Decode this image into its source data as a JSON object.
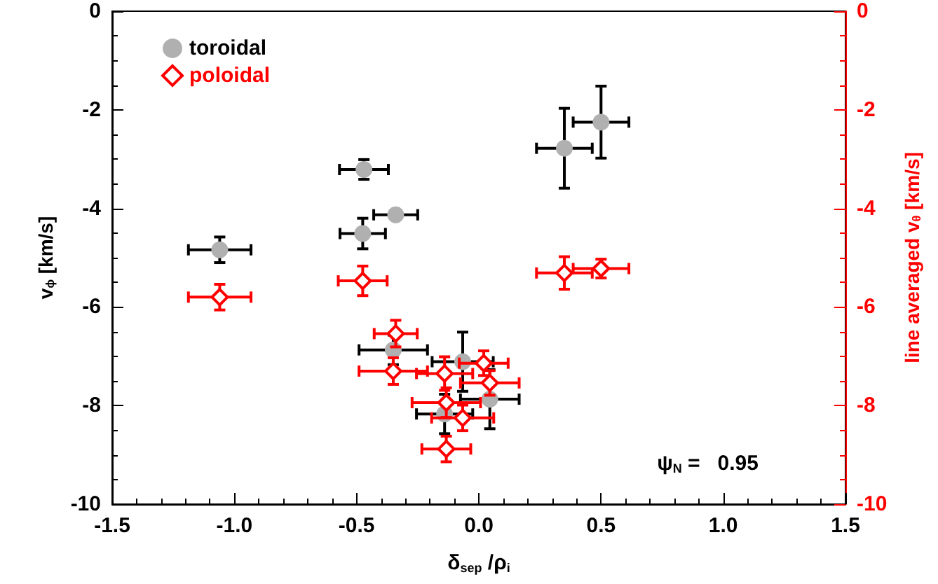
{
  "chart_data": {
    "type": "scatter",
    "xlabel": "δ$_{sep}$ /ρ$_{i}$",
    "ylabel": "v$_{ϕ}$ [km/s]",
    "y2label": "line averaged v$_{θ}$ [km/s]",
    "xlim": [
      -1.5,
      1.5
    ],
    "xticks": [
      {
        "value": -1.5,
        "label": "-1.5"
      },
      {
        "value": -1,
        "label": "-1.0"
      },
      {
        "value": -0.5,
        "label": "-0.5"
      },
      {
        "value": 0,
        "label": "0.0"
      },
      {
        "value": 0.5,
        "label": "0.5"
      },
      {
        "value": 1,
        "label": "1.0"
      },
      {
        "value": 1.5,
        "label": "1.5"
      }
    ],
    "ylim": [
      -10,
      0
    ],
    "yticks": [
      -10,
      -8,
      -6,
      -4,
      -2,
      0
    ],
    "y2lim": [
      -10,
      0
    ],
    "y2ticks": [
      -10,
      -8,
      -6,
      -4,
      -2,
      0
    ],
    "grid": false,
    "legend": "top left",
    "annotations": [
      "ψ$_{N}$ =   0.95"
    ],
    "series": [
      {
        "name": "toroidal",
        "color": "#b0b0b0",
        "marker": "circle",
        "x": [
          -1.06,
          -0.47,
          -0.34,
          -0.475,
          0.35,
          0.5,
          -0.35,
          -0.066,
          0.045,
          -0.133,
          -0.14
        ],
        "values": [
          -4.84,
          -3.21,
          -4.13,
          -4.51,
          -2.78,
          -2.25,
          -6.87,
          -7.11,
          -7.87,
          null,
          -8.17
        ],
        "errors": [
          0.26,
          0.2,
          0.03,
          0.31,
          0.81,
          0.73,
          0.3,
          0.6,
          0.6,
          null,
          0.4
        ],
        "xerrors": [
          0.128,
          0.1,
          0.09,
          0.093,
          0.114,
          0.114,
          0.14,
          0.125,
          0.12,
          null,
          0.115
        ]
      },
      {
        "name": "poloidal",
        "color": "#ff0000",
        "marker": "diamond",
        "axis": "y2",
        "x": [
          -1.06,
          -0.475,
          0.35,
          0.5,
          -0.34,
          -0.35,
          -0.14,
          0.02,
          0.045,
          -0.133,
          -0.066,
          -0.133
        ],
        "values": [
          -5.8,
          -5.47,
          -5.31,
          -5.22,
          -6.54,
          -7.3,
          -7.35,
          -7.14,
          -7.54,
          -7.94,
          -8.25,
          -8.88
        ],
        "errors": [
          0.26,
          0.3,
          0.33,
          0.19,
          0.27,
          0.27,
          0.34,
          0.25,
          0.25,
          0.3,
          0.26,
          0.26
        ],
        "xerrors": [
          0.128,
          0.1,
          0.114,
          0.114,
          0.088,
          0.14,
          0.115,
          0.1,
          0.12,
          0.14,
          0.127,
          0.1
        ]
      }
    ]
  }
}
